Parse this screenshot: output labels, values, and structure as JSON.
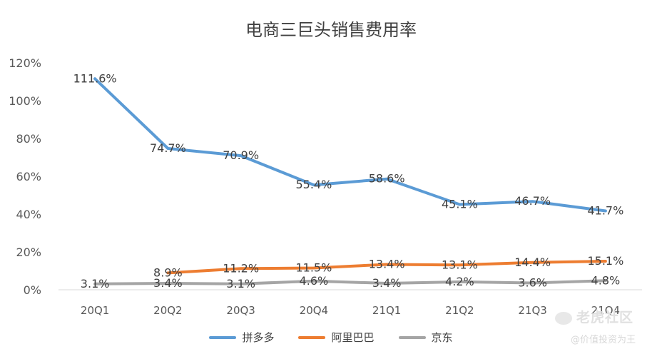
{
  "chart_data": {
    "type": "line",
    "title": "电商三巨头销售费用率",
    "categories": [
      "20Q1",
      "20Q2",
      "20Q3",
      "20Q4",
      "21Q1",
      "21Q2",
      "21Q3",
      "21Q4"
    ],
    "ylim": [
      0,
      120
    ],
    "yticks": [
      0,
      20,
      40,
      60,
      80,
      100,
      120
    ],
    "ytick_labels": [
      "0%",
      "20%",
      "40%",
      "60%",
      "80%",
      "100%",
      "120%"
    ],
    "grid": false,
    "legend": "bottom",
    "series": [
      {
        "name": "拼多多",
        "color": "#5B9BD5",
        "values": [
          111.6,
          74.7,
          70.9,
          55.4,
          58.6,
          45.1,
          46.7,
          41.7
        ],
        "labels": [
          "111.6%",
          "74.7%",
          "70.9%",
          "55.4%",
          "58.6%",
          "45.1%",
          "46.7%",
          "41.7%"
        ]
      },
      {
        "name": "阿里巴巴",
        "color": "#ED7D31",
        "values": [
          null,
          8.9,
          11.2,
          11.5,
          13.4,
          13.1,
          14.4,
          15.1
        ],
        "labels": [
          null,
          "8.9%",
          "11.2%",
          "11.5%",
          "13.4%",
          "13.1%",
          "14.4%",
          "15.1%"
        ]
      },
      {
        "name": "京东",
        "color": "#A5A5A5",
        "values": [
          3.1,
          3.4,
          3.1,
          4.6,
          3.4,
          4.2,
          3.6,
          4.8
        ],
        "labels": [
          "3.1%",
          "3.4%",
          "3.1%",
          "4.6%",
          "3.4%",
          "4.2%",
          "3.6%",
          "4.8%"
        ]
      }
    ]
  },
  "watermark": {
    "logo_text": "老虎社区",
    "sub_text": "@价值投资为王"
  }
}
